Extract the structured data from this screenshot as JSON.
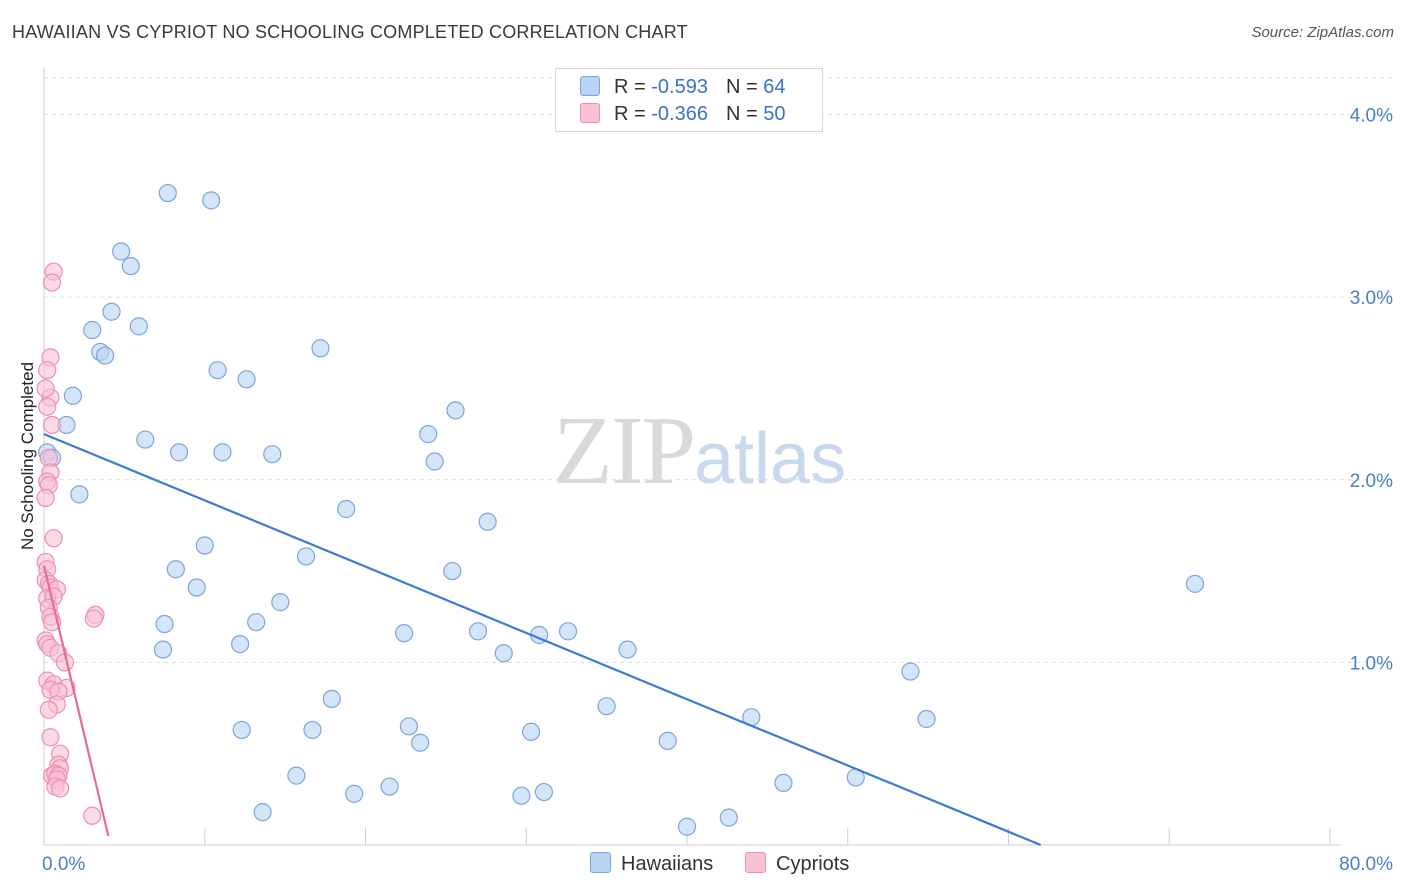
{
  "title": "HAWAIIAN VS CYPRIOT NO SCHOOLING COMPLETED CORRELATION CHART",
  "source": "Source: ZipAtlas.com",
  "watermark": {
    "zip": "ZIP",
    "atlas": "atlas"
  },
  "legend": {
    "rows": [
      {
        "r_label": "R = ",
        "r_value": "-0.593",
        "n_label": "N = ",
        "n_value": "64"
      },
      {
        "r_label": "R = ",
        "r_value": "-0.366",
        "n_label": "N = ",
        "n_value": "50"
      }
    ]
  },
  "bottom_legend": {
    "hawaiians": "Hawaiians",
    "cypriots": "Cypriots"
  },
  "colors": {
    "hawaiian_fill": "#b9d3f3",
    "hawaiian_stroke": "#7aa6dd",
    "hawaiian_line": "#3a7bd5",
    "cypriot_fill": "#f9c2d4",
    "cypriot_stroke": "#ee8fb0",
    "cypriot_line": "#e8699a",
    "tick": "#4a7fc8",
    "grid": "#dddddd"
  },
  "chart_data": {
    "type": "scatter",
    "title": "HAWAIIAN VS CYPRIOT NO SCHOOLING COMPLETED CORRELATION CHART",
    "xlabel": "",
    "ylabel": "No Schooling Completed",
    "xlim": [
      0,
      80
    ],
    "ylim": [
      0,
      4.2
    ],
    "x_tick_labels": [
      "0.0%",
      "80.0%"
    ],
    "y_ticks": [
      1.0,
      2.0,
      3.0,
      4.0
    ],
    "y_tick_labels": [
      "1.0%",
      "2.0%",
      "3.0%",
      "4.0%"
    ],
    "grid": true,
    "series": [
      {
        "name": "Hawaiians",
        "r": -0.593,
        "n": 64,
        "trend": {
          "x0": 0.0,
          "y0": 2.25,
          "x1": 62.0,
          "y1": 0.0
        },
        "points": [
          [
            0.2,
            2.15
          ],
          [
            1.8,
            2.46
          ],
          [
            1.4,
            2.3
          ],
          [
            2.2,
            1.92
          ],
          [
            3.0,
            2.82
          ],
          [
            3.5,
            2.7
          ],
          [
            3.8,
            2.68
          ],
          [
            4.2,
            2.92
          ],
          [
            4.8,
            3.25
          ],
          [
            5.4,
            3.17
          ],
          [
            5.9,
            2.84
          ],
          [
            6.3,
            2.22
          ],
          [
            7.7,
            3.57
          ],
          [
            8.4,
            2.15
          ],
          [
            8.2,
            1.51
          ],
          [
            7.5,
            1.21
          ],
          [
            7.4,
            1.07
          ],
          [
            9.5,
            1.41
          ],
          [
            10.0,
            1.64
          ],
          [
            10.4,
            3.53
          ],
          [
            10.8,
            2.6
          ],
          [
            11.1,
            2.15
          ],
          [
            12.2,
            1.1
          ],
          [
            12.3,
            0.63
          ],
          [
            12.6,
            2.55
          ],
          [
            13.2,
            1.22
          ],
          [
            13.6,
            0.18
          ],
          [
            14.2,
            2.14
          ],
          [
            14.7,
            1.33
          ],
          [
            15.7,
            0.38
          ],
          [
            16.3,
            1.58
          ],
          [
            16.7,
            0.63
          ],
          [
            17.2,
            2.72
          ],
          [
            17.9,
            0.8
          ],
          [
            18.8,
            1.84
          ],
          [
            19.3,
            0.28
          ],
          [
            21.5,
            0.32
          ],
          [
            22.4,
            1.16
          ],
          [
            22.7,
            0.65
          ],
          [
            23.4,
            0.56
          ],
          [
            23.9,
            2.25
          ],
          [
            24.3,
            2.1
          ],
          [
            25.4,
            1.5
          ],
          [
            25.6,
            2.38
          ],
          [
            27.0,
            1.17
          ],
          [
            27.6,
            1.77
          ],
          [
            28.6,
            1.05
          ],
          [
            29.7,
            0.27
          ],
          [
            30.3,
            0.62
          ],
          [
            30.8,
            1.15
          ],
          [
            31.1,
            0.29
          ],
          [
            32.6,
            1.17
          ],
          [
            35.0,
            0.76
          ],
          [
            36.3,
            1.07
          ],
          [
            38.8,
            0.57
          ],
          [
            40.0,
            0.1
          ],
          [
            42.6,
            0.15
          ],
          [
            44.0,
            0.7
          ],
          [
            46.0,
            0.34
          ],
          [
            50.5,
            0.37
          ],
          [
            53.9,
            0.95
          ],
          [
            54.9,
            0.69
          ],
          [
            71.6,
            1.43
          ],
          [
            0.5,
            2.12
          ]
        ]
      },
      {
        "name": "Cypriots",
        "r": -0.366,
        "n": 50,
        "trend": {
          "x0": 0.0,
          "y0": 1.53,
          "x1": 4.0,
          "y1": 0.05
        },
        "points": [
          [
            0.6,
            3.14
          ],
          [
            0.5,
            3.08
          ],
          [
            0.4,
            2.67
          ],
          [
            0.2,
            2.6
          ],
          [
            0.4,
            2.45
          ],
          [
            0.1,
            2.5
          ],
          [
            0.2,
            2.4
          ],
          [
            0.5,
            2.3
          ],
          [
            0.3,
            2.12
          ],
          [
            0.4,
            2.04
          ],
          [
            0.2,
            1.99
          ],
          [
            0.3,
            1.97
          ],
          [
            0.1,
            1.9
          ],
          [
            0.6,
            1.68
          ],
          [
            0.1,
            1.55
          ],
          [
            0.2,
            1.51
          ],
          [
            0.1,
            1.45
          ],
          [
            0.3,
            1.43
          ],
          [
            0.4,
            1.41
          ],
          [
            0.8,
            1.4
          ],
          [
            0.2,
            1.35
          ],
          [
            0.6,
            1.36
          ],
          [
            0.3,
            1.3
          ],
          [
            0.4,
            1.25
          ],
          [
            0.5,
            1.22
          ],
          [
            0.1,
            1.12
          ],
          [
            0.2,
            1.1
          ],
          [
            0.4,
            1.08
          ],
          [
            0.9,
            1.05
          ],
          [
            1.3,
            1.0
          ],
          [
            0.2,
            0.9
          ],
          [
            0.6,
            0.88
          ],
          [
            1.4,
            0.86
          ],
          [
            0.4,
            0.85
          ],
          [
            0.9,
            0.84
          ],
          [
            0.8,
            0.77
          ],
          [
            0.4,
            0.59
          ],
          [
            1.0,
            0.5
          ],
          [
            0.9,
            0.44
          ],
          [
            1.0,
            0.42
          ],
          [
            0.5,
            0.38
          ],
          [
            0.7,
            0.39
          ],
          [
            0.9,
            0.38
          ],
          [
            0.8,
            0.36
          ],
          [
            0.7,
            0.32
          ],
          [
            1.0,
            0.31
          ],
          [
            3.2,
            1.26
          ],
          [
            3.1,
            1.24
          ],
          [
            3.0,
            0.16
          ],
          [
            0.3,
            0.74
          ]
        ]
      }
    ]
  }
}
